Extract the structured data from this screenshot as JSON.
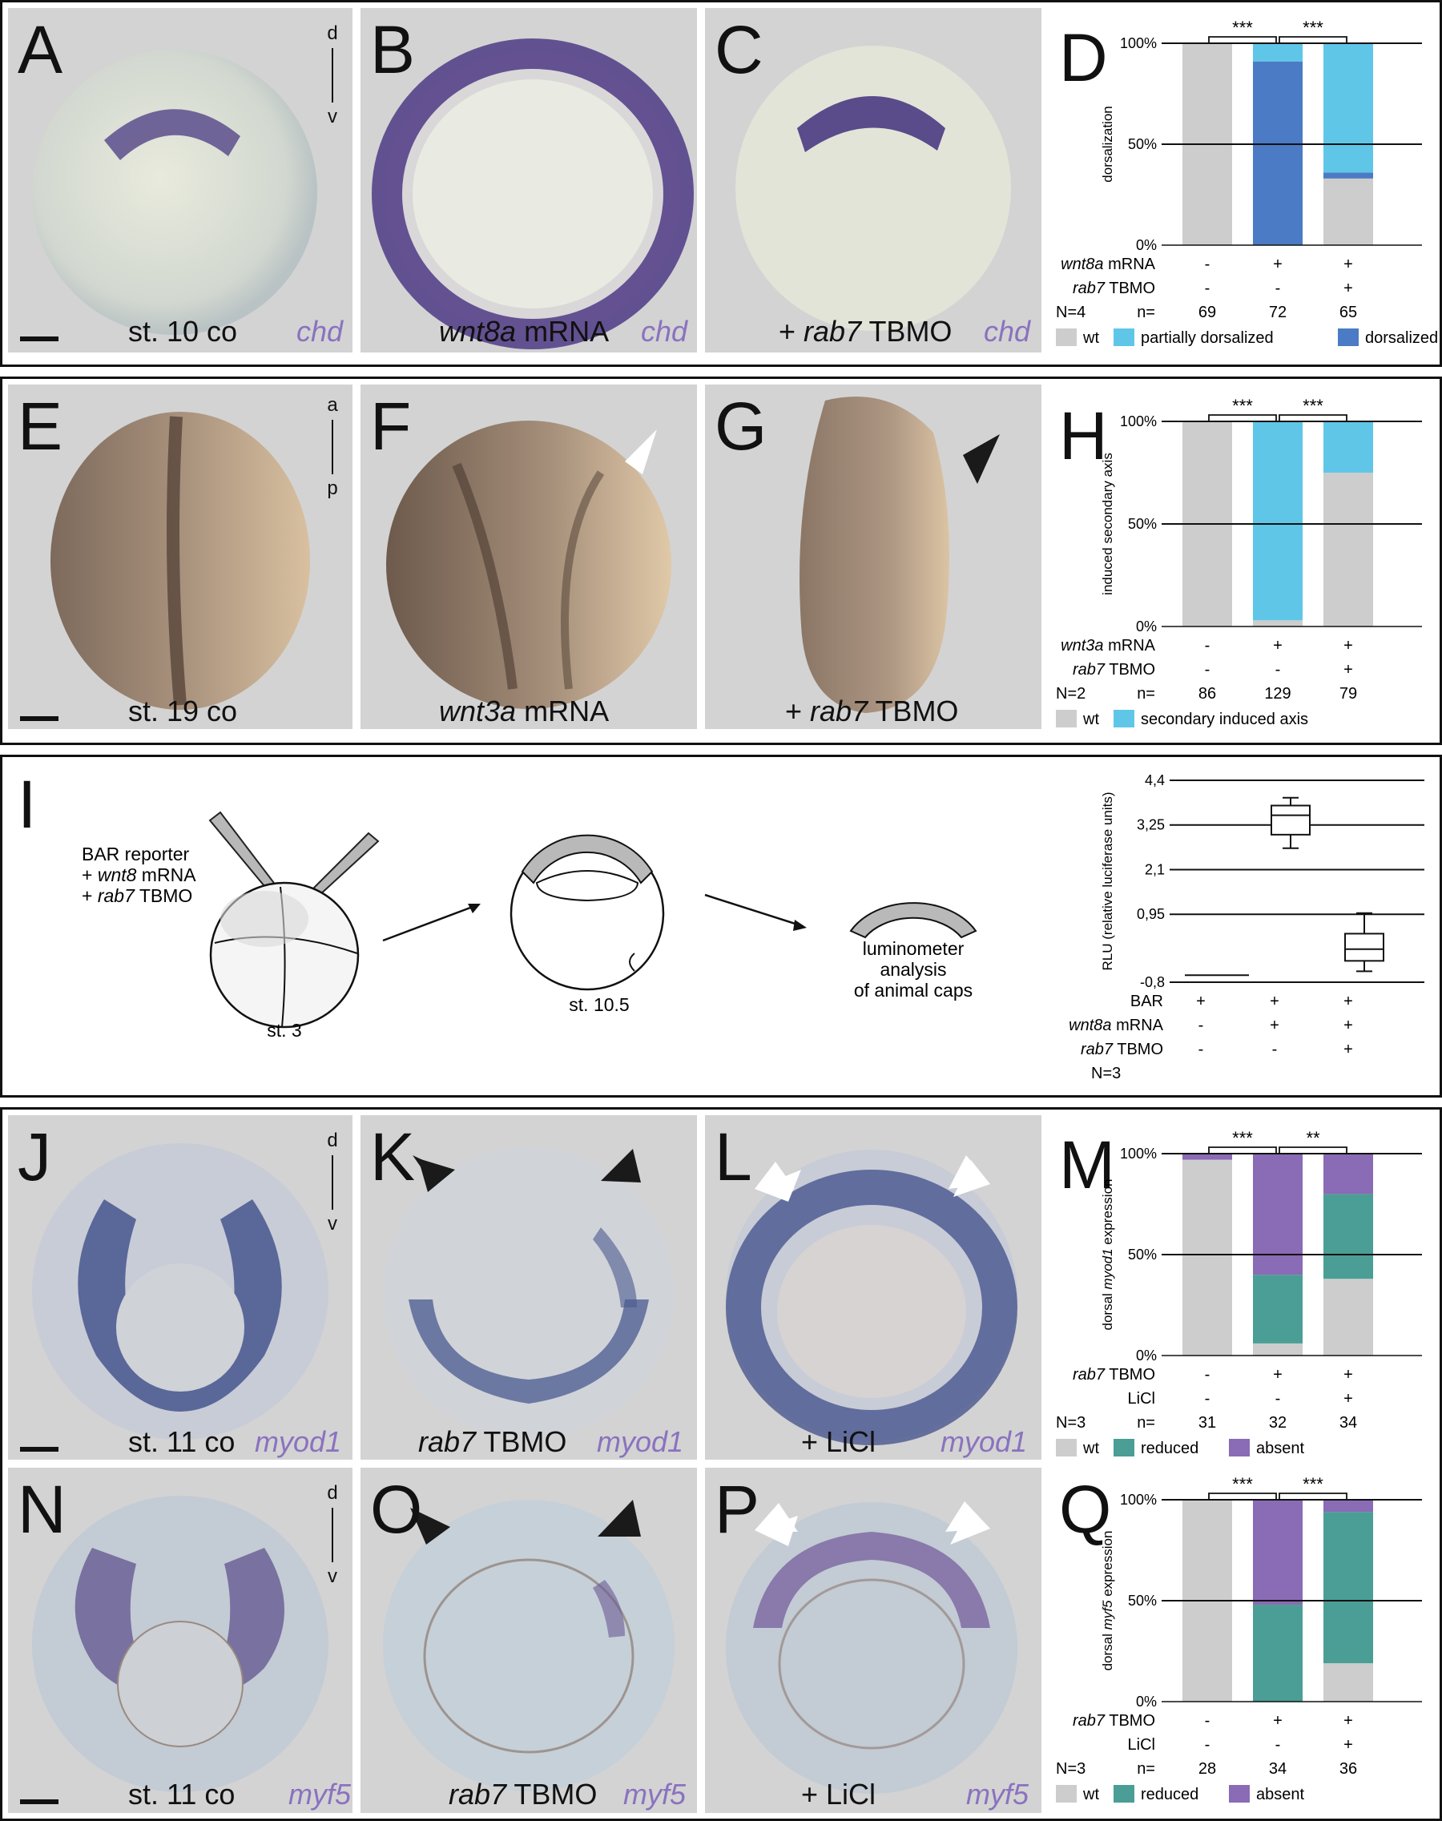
{
  "panel_letters": [
    "A",
    "B",
    "C",
    "D",
    "E",
    "F",
    "G",
    "H",
    "I",
    "J",
    "K",
    "L",
    "M",
    "N",
    "O",
    "P",
    "Q"
  ],
  "captions": {
    "A": {
      "main": "st. 10 co",
      "gene": "chd"
    },
    "B": {
      "italic": "wnt8a",
      "main": " mRNA",
      "gene": "chd"
    },
    "C": {
      "prefix": "+ ",
      "italic": "rab7",
      "main": " TBMO",
      "gene": "chd"
    },
    "E": {
      "main": "st. 19 co"
    },
    "F": {
      "italic": "wnt3a",
      "main": " mRNA"
    },
    "G": {
      "prefix": "+ ",
      "italic": "rab7",
      "main": " TBMO"
    },
    "J": {
      "main": "st. 11 co",
      "gene": "myod1"
    },
    "K": {
      "italic": "rab7",
      "main": " TBMO",
      "gene": "myod1"
    },
    "L": {
      "main": "+ LiCl",
      "gene": "myod1"
    },
    "N": {
      "main": "st. 11 co",
      "gene": "myf5"
    },
    "O": {
      "italic": "rab7",
      "main": " TBMO",
      "gene": "myf5"
    },
    "P": {
      "main": "+ LiCl",
      "gene": "myf5"
    }
  },
  "axis_indicators": {
    "A": {
      "top": "d",
      "bottom": "v"
    },
    "E": {
      "top": "a",
      "bottom": "p"
    },
    "J": {
      "top": "d",
      "bottom": "v"
    },
    "N": {
      "top": "d",
      "bottom": "v"
    }
  },
  "schematic_I": {
    "label_line1": "BAR reporter",
    "label_line2_prefix": "+ ",
    "label_line2_italic": "wnt8",
    "label_line2_suffix": " mRNA",
    "label_line3_prefix": "+ ",
    "label_line3_italic": "rab7",
    "label_line3_suffix": " TBMO",
    "stage1": "st. 3",
    "stage2": "st. 10.5",
    "result_line1": "luminometer",
    "result_line2": "analysis",
    "result_line3": "of animal caps"
  },
  "colors": {
    "wt": "#cdcdcd",
    "partially_dorsalized": "#5fc6e8",
    "dorsalized": "#4a7bc4",
    "secondary_axis": "#5fc6e8",
    "reduced": "#4a9e95",
    "absent": "#8a6bb5",
    "gene_label": "#8a72bf",
    "photo_bg": "#d3d3d3"
  },
  "chart_data": [
    {
      "panel": "D",
      "type": "bar",
      "stacked": true,
      "ylabel": "dorsalization",
      "yticks": [
        "0%",
        "50%",
        "100%"
      ],
      "ylim": [
        0,
        100
      ],
      "row_labels": [
        {
          "italic": "wnt8a",
          "text": " mRNA",
          "values": [
            "-",
            "+",
            "+"
          ]
        },
        {
          "italic": "rab7",
          "text": " TBMO",
          "values": [
            "-",
            "-",
            "+"
          ]
        }
      ],
      "n_label": "N=4",
      "n_prefix": "n=",
      "n_values": [
        "69",
        "72",
        "65"
      ],
      "significance": [
        "***",
        "***"
      ],
      "series": [
        {
          "name": "wt",
          "values": [
            100,
            0,
            33
          ]
        },
        {
          "name": "dorsalized",
          "values": [
            0,
            91,
            3
          ]
        },
        {
          "name": "partially dorsalized",
          "values": [
            0,
            9,
            64
          ]
        }
      ],
      "legend": [
        "wt",
        "partially dorsalized",
        "dorsalized"
      ]
    },
    {
      "panel": "H",
      "type": "bar",
      "stacked": true,
      "ylabel": "induced secondary axis",
      "yticks": [
        "0%",
        "50%",
        "100%"
      ],
      "ylim": [
        0,
        100
      ],
      "row_labels": [
        {
          "italic": "wnt3a",
          "text": " mRNA",
          "values": [
            "-",
            "+",
            "+"
          ]
        },
        {
          "italic": "rab7",
          "text": " TBMO",
          "values": [
            "-",
            "-",
            "+"
          ]
        }
      ],
      "n_label": "N=2",
      "n_prefix": "n=",
      "n_values": [
        "86",
        "129",
        "79"
      ],
      "significance": [
        "***",
        "***"
      ],
      "series": [
        {
          "name": "wt",
          "values": [
            100,
            3,
            75
          ]
        },
        {
          "name": "secondary induced axis",
          "values": [
            0,
            97,
            25
          ]
        }
      ],
      "legend": [
        "wt",
        "secondary induced axis"
      ]
    },
    {
      "panel": "I",
      "type": "boxplot",
      "ylabel": "RLU (relative luciferase units)",
      "yticks": [
        "-0,8",
        "0,95",
        "2,1",
        "3,25",
        "4,4"
      ],
      "ytick_values": [
        -0.8,
        0.95,
        2.1,
        3.25,
        4.4
      ],
      "ylim": [
        -0.8,
        4.4
      ],
      "row_labels": [
        {
          "italic": "",
          "text": "BAR",
          "values": [
            "+",
            "+",
            "+"
          ]
        },
        {
          "italic": "wnt8a",
          "text": " mRNA",
          "values": [
            "-",
            "+",
            "+"
          ]
        },
        {
          "italic": "rab7",
          "text": " TBMO",
          "values": [
            "-",
            "-",
            "+"
          ]
        }
      ],
      "n_label": "N=3",
      "boxes": [
        {
          "min": -0.62,
          "q1": -0.62,
          "median": -0.62,
          "q3": -0.62,
          "max": -0.62
        },
        {
          "min": 2.65,
          "q1": 3.0,
          "median": 3.5,
          "q3": 3.75,
          "max": 3.95
        },
        {
          "min": -0.52,
          "q1": -0.25,
          "median": 0.05,
          "q3": 0.45,
          "max": 0.98
        }
      ]
    },
    {
      "panel": "M",
      "type": "bar",
      "stacked": true,
      "ylabel_prefix": "dorsal ",
      "ylabel_italic": "myod1",
      "ylabel_suffix": " expression",
      "yticks": [
        "0%",
        "50%",
        "100%"
      ],
      "ylim": [
        0,
        100
      ],
      "row_labels": [
        {
          "italic": "rab7",
          "text": " TBMO",
          "values": [
            "-",
            "+",
            "+"
          ]
        },
        {
          "italic": "",
          "text": "LiCl",
          "values": [
            "-",
            "-",
            "+"
          ]
        }
      ],
      "n_label": "N=3",
      "n_prefix": "n=",
      "n_values": [
        "31",
        "32",
        "34"
      ],
      "significance": [
        "***",
        "**"
      ],
      "series": [
        {
          "name": "wt",
          "values": [
            97,
            6,
            38
          ]
        },
        {
          "name": "reduced",
          "values": [
            0,
            34,
            42
          ]
        },
        {
          "name": "absent",
          "values": [
            3,
            60,
            20
          ]
        }
      ],
      "legend": [
        "wt",
        "reduced",
        "absent"
      ]
    },
    {
      "panel": "Q",
      "type": "bar",
      "stacked": true,
      "ylabel_prefix": "dorsal ",
      "ylabel_italic": "myf5",
      "ylabel_suffix": " expression",
      "yticks": [
        "0%",
        "50%",
        "100%"
      ],
      "ylim": [
        0,
        100
      ],
      "row_labels": [
        {
          "italic": "rab7",
          "text": " TBMO",
          "values": [
            "-",
            "+",
            "+"
          ]
        },
        {
          "italic": "",
          "text": "LiCl",
          "values": [
            "-",
            "-",
            "+"
          ]
        }
      ],
      "n_label": "N=3",
      "n_prefix": "n=",
      "n_values": [
        "28",
        "34",
        "36"
      ],
      "significance": [
        "***",
        "***"
      ],
      "series": [
        {
          "name": "wt",
          "values": [
            100,
            0,
            19
          ]
        },
        {
          "name": "reduced",
          "values": [
            0,
            48,
            75
          ]
        },
        {
          "name": "absent",
          "values": [
            0,
            52,
            6
          ]
        }
      ],
      "legend": [
        "wt",
        "reduced",
        "absent"
      ]
    }
  ]
}
